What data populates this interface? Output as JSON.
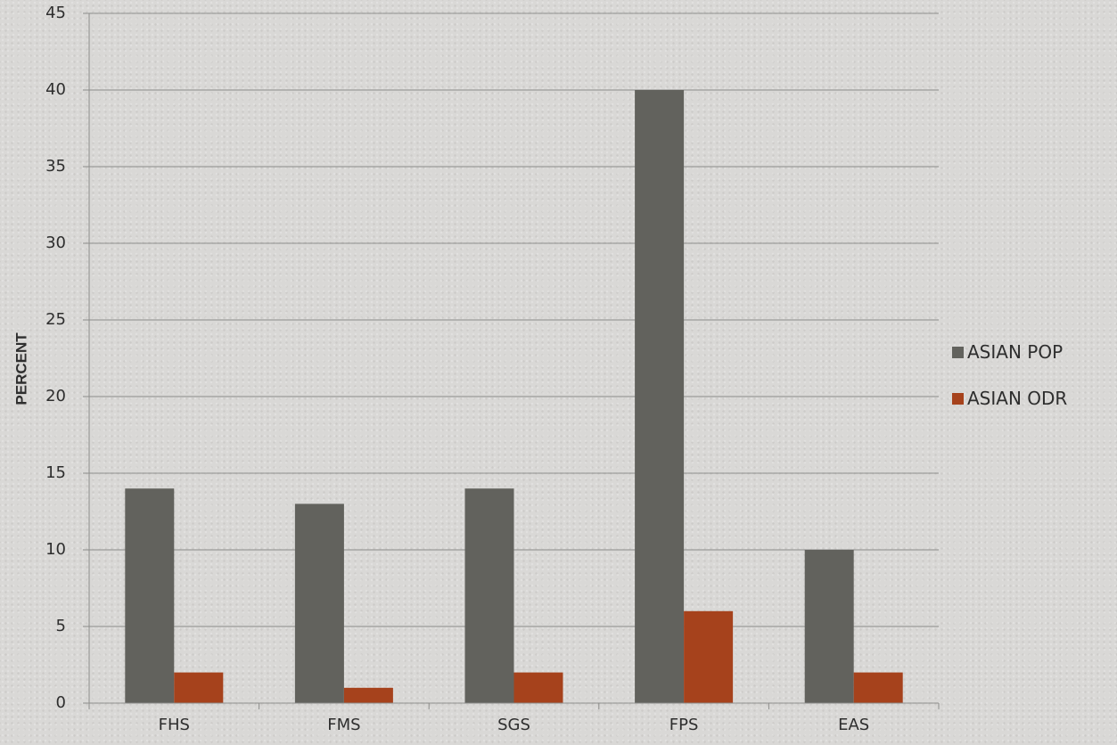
{
  "chart_data": {
    "type": "bar",
    "title": "",
    "xlabel": "",
    "ylabel": "PERCENT",
    "ylim": [
      0,
      45
    ],
    "y_ticks": [
      0,
      5,
      10,
      15,
      20,
      25,
      30,
      35,
      40,
      45
    ],
    "grid": true,
    "legend_position": "right",
    "categories": [
      "FHS",
      "FMS",
      "SGS",
      "FPS",
      "EAS"
    ],
    "series": [
      {
        "name": "ASIAN POP",
        "values": [
          14,
          13,
          14,
          40,
          10
        ],
        "color": "#62625d"
      },
      {
        "name": "ASIAN ODR",
        "values": [
          2,
          1,
          2,
          6,
          2
        ],
        "color": "#a6421c"
      }
    ]
  }
}
